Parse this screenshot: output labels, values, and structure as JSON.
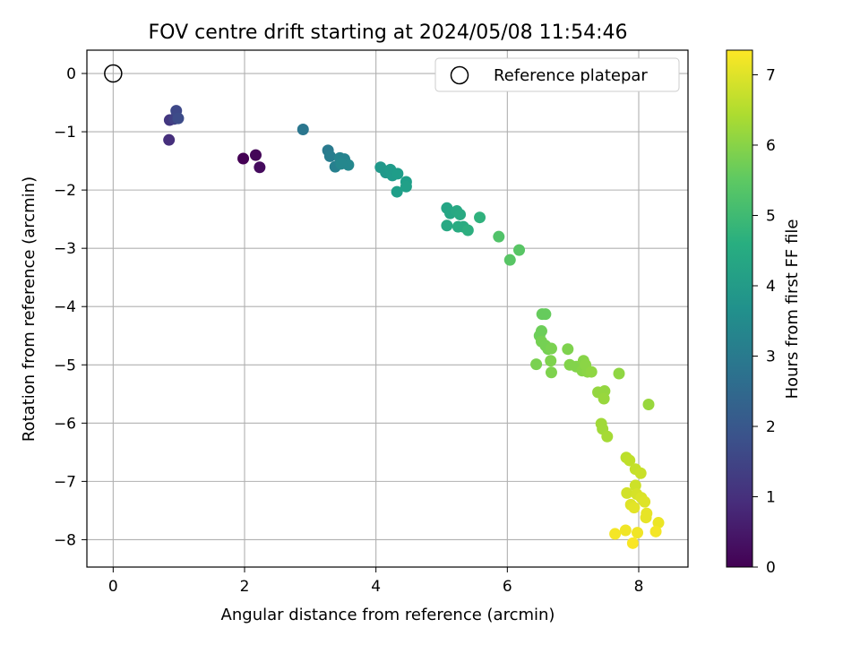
{
  "chart_data": {
    "type": "scatter",
    "title": "FOV centre drift starting at 2024/05/08 11:54:46",
    "xlabel": "Angular distance from reference (arcmin)",
    "ylabel": "Rotation from reference (arcmin)",
    "colorbar_label": "Hours from first FF file",
    "colormap": "viridis",
    "xlim": [
      -0.4,
      8.75
    ],
    "ylim": [
      -8.47,
      0.4
    ],
    "clim": [
      0,
      7.35
    ],
    "x_ticks": [
      0,
      2,
      4,
      6,
      8
    ],
    "y_ticks": [
      0,
      -1,
      -2,
      -3,
      -4,
      -5,
      -6,
      -7,
      -8
    ],
    "colorbar_ticks": [
      0,
      1,
      2,
      3,
      4,
      5,
      6,
      7
    ],
    "grid": true,
    "legend": {
      "position": "top-right",
      "entries": [
        "Reference platepar"
      ]
    },
    "reference_point": {
      "x": 0,
      "y": 0
    },
    "points": [
      {
        "x": 1.98,
        "y": -1.46,
        "h": 0.0
      },
      {
        "x": 2.17,
        "y": -1.4,
        "h": 0.1
      },
      {
        "x": 2.23,
        "y": -1.61,
        "h": 0.2
      },
      {
        "x": 0.85,
        "y": -1.14,
        "h": 1.0
      },
      {
        "x": 0.86,
        "y": -0.8,
        "h": 1.2
      },
      {
        "x": 0.93,
        "y": -0.78,
        "h": 1.4
      },
      {
        "x": 0.96,
        "y": -0.64,
        "h": 1.6
      },
      {
        "x": 0.99,
        "y": -0.77,
        "h": 1.7
      },
      {
        "x": 2.89,
        "y": -0.96,
        "h": 2.9
      },
      {
        "x": 3.27,
        "y": -1.32,
        "h": 3.0
      },
      {
        "x": 3.3,
        "y": -1.42,
        "h": 3.1
      },
      {
        "x": 3.38,
        "y": -1.6,
        "h": 3.2
      },
      {
        "x": 3.45,
        "y": -1.45,
        "h": 3.3
      },
      {
        "x": 3.52,
        "y": -1.47,
        "h": 3.3
      },
      {
        "x": 3.58,
        "y": -1.57,
        "h": 3.4
      },
      {
        "x": 3.47,
        "y": -1.55,
        "h": 3.4
      },
      {
        "x": 4.07,
        "y": -1.61,
        "h": 3.9
      },
      {
        "x": 4.15,
        "y": -1.7,
        "h": 3.9
      },
      {
        "x": 4.22,
        "y": -1.65,
        "h": 4.0
      },
      {
        "x": 4.25,
        "y": -1.75,
        "h": 4.0
      },
      {
        "x": 4.33,
        "y": -1.72,
        "h": 4.05
      },
      {
        "x": 4.32,
        "y": -2.03,
        "h": 4.1
      },
      {
        "x": 4.46,
        "y": -1.86,
        "h": 4.1
      },
      {
        "x": 4.46,
        "y": -1.94,
        "h": 4.15
      },
      {
        "x": 5.08,
        "y": -2.31,
        "h": 4.3
      },
      {
        "x": 5.13,
        "y": -2.4,
        "h": 4.35
      },
      {
        "x": 5.08,
        "y": -2.61,
        "h": 4.4
      },
      {
        "x": 5.23,
        "y": -2.36,
        "h": 4.4
      },
      {
        "x": 5.28,
        "y": -2.42,
        "h": 4.45
      },
      {
        "x": 5.25,
        "y": -2.63,
        "h": 4.5
      },
      {
        "x": 5.33,
        "y": -2.63,
        "h": 4.5
      },
      {
        "x": 5.4,
        "y": -2.69,
        "h": 4.6
      },
      {
        "x": 5.58,
        "y": -2.47,
        "h": 4.7
      },
      {
        "x": 5.87,
        "y": -2.8,
        "h": 5.3
      },
      {
        "x": 6.04,
        "y": -3.2,
        "h": 5.4
      },
      {
        "x": 6.18,
        "y": -3.03,
        "h": 5.4
      },
      {
        "x": 6.53,
        "y": -4.13,
        "h": 5.6
      },
      {
        "x": 6.58,
        "y": -4.13,
        "h": 5.6
      },
      {
        "x": 6.52,
        "y": -4.42,
        "h": 5.7
      },
      {
        "x": 6.49,
        "y": -4.5,
        "h": 5.7
      },
      {
        "x": 6.52,
        "y": -4.6,
        "h": 5.8
      },
      {
        "x": 6.58,
        "y": -4.67,
        "h": 5.8
      },
      {
        "x": 6.62,
        "y": -4.73,
        "h": 5.8
      },
      {
        "x": 6.67,
        "y": -4.72,
        "h": 5.85
      },
      {
        "x": 6.44,
        "y": -4.99,
        "h": 5.85
      },
      {
        "x": 6.66,
        "y": -4.93,
        "h": 5.9
      },
      {
        "x": 6.67,
        "y": -5.13,
        "h": 5.9
      },
      {
        "x": 6.92,
        "y": -4.73,
        "h": 5.9
      },
      {
        "x": 6.95,
        "y": -5.0,
        "h": 5.95
      },
      {
        "x": 7.05,
        "y": -5.03,
        "h": 5.95
      },
      {
        "x": 7.16,
        "y": -4.93,
        "h": 6.0
      },
      {
        "x": 7.14,
        "y": -5.1,
        "h": 6.0
      },
      {
        "x": 7.22,
        "y": -5.12,
        "h": 6.05
      },
      {
        "x": 7.19,
        "y": -5.0,
        "h": 6.05
      },
      {
        "x": 7.28,
        "y": -5.12,
        "h": 6.1
      },
      {
        "x": 7.7,
        "y": -5.15,
        "h": 6.1
      },
      {
        "x": 7.38,
        "y": -5.47,
        "h": 6.15
      },
      {
        "x": 7.48,
        "y": -5.45,
        "h": 6.15
      },
      {
        "x": 7.47,
        "y": -5.58,
        "h": 6.2
      },
      {
        "x": 8.15,
        "y": -5.68,
        "h": 6.2
      },
      {
        "x": 7.43,
        "y": -6.01,
        "h": 6.3
      },
      {
        "x": 7.45,
        "y": -6.1,
        "h": 6.3
      },
      {
        "x": 7.52,
        "y": -6.23,
        "h": 6.35
      },
      {
        "x": 7.81,
        "y": -6.59,
        "h": 6.6
      },
      {
        "x": 7.86,
        "y": -6.64,
        "h": 6.65
      },
      {
        "x": 7.95,
        "y": -6.79,
        "h": 6.7
      },
      {
        "x": 8.03,
        "y": -6.86,
        "h": 6.75
      },
      {
        "x": 7.95,
        "y": -7.07,
        "h": 6.8
      },
      {
        "x": 7.82,
        "y": -7.2,
        "h": 6.85
      },
      {
        "x": 7.97,
        "y": -7.22,
        "h": 6.9
      },
      {
        "x": 8.04,
        "y": -7.28,
        "h": 6.95
      },
      {
        "x": 8.09,
        "y": -7.35,
        "h": 7.0
      },
      {
        "x": 7.88,
        "y": -7.4,
        "h": 7.0
      },
      {
        "x": 7.93,
        "y": -7.45,
        "h": 7.05
      },
      {
        "x": 8.12,
        "y": -7.55,
        "h": 7.1
      },
      {
        "x": 8.11,
        "y": -7.62,
        "h": 7.1
      },
      {
        "x": 8.3,
        "y": -7.71,
        "h": 7.15
      },
      {
        "x": 7.8,
        "y": -7.84,
        "h": 7.2
      },
      {
        "x": 7.98,
        "y": -7.88,
        "h": 7.2
      },
      {
        "x": 7.64,
        "y": -7.9,
        "h": 7.25
      },
      {
        "x": 8.26,
        "y": -7.86,
        "h": 7.25
      },
      {
        "x": 7.91,
        "y": -8.06,
        "h": 7.3
      }
    ]
  }
}
